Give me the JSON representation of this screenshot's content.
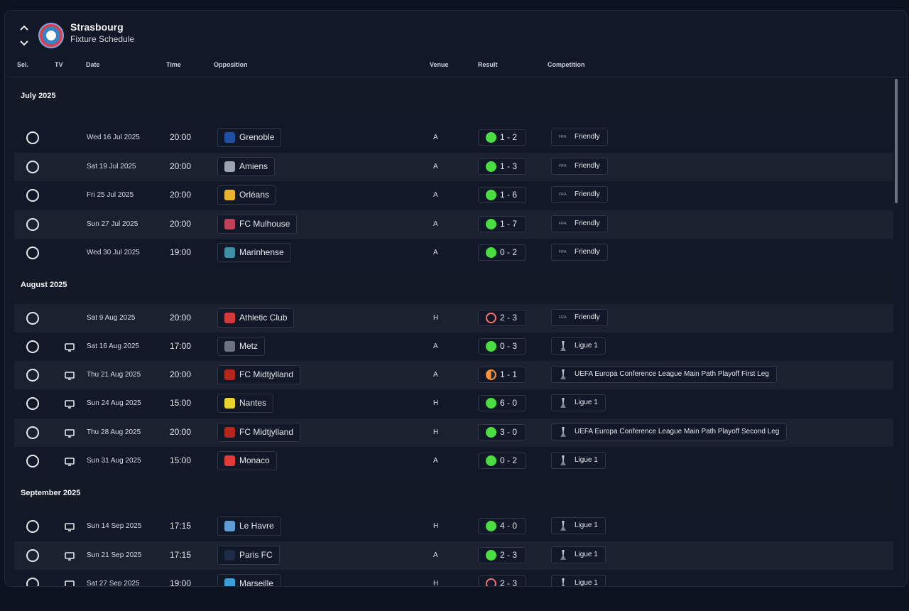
{
  "header": {
    "team": "Strasbourg",
    "subtitle": "Fixture Schedule"
  },
  "columns": {
    "sel": "Sel.",
    "tv": "TV",
    "date": "Date",
    "time": "Time",
    "opposition": "Opposition",
    "venue": "Venue",
    "result": "Result",
    "competition": "Competition"
  },
  "months": [
    "July 2025",
    "August 2025",
    "September 2025"
  ],
  "fixtures": [
    {
      "date": "Wed 16 Jul 2025",
      "time": "20:00",
      "opp": "Grenoble",
      "venue": "A",
      "result": "1 - 2",
      "outcome": "win",
      "comp": "Friendly",
      "tv": false,
      "badge": "#1e4fa3"
    },
    {
      "date": "Sat 19 Jul 2025",
      "time": "20:00",
      "opp": "Amiens",
      "venue": "A",
      "result": "1 - 3",
      "outcome": "win",
      "comp": "Friendly",
      "tv": false,
      "badge": "#9ca3af"
    },
    {
      "date": "Fri 25 Jul 2025",
      "time": "20:00",
      "opp": "Orléans",
      "venue": "A",
      "result": "1 - 6",
      "outcome": "win",
      "comp": "Friendly",
      "tv": false,
      "badge": "#e8b52c"
    },
    {
      "date": "Sun 27 Jul 2025",
      "time": "20:00",
      "opp": "FC Mulhouse",
      "venue": "A",
      "result": "1 - 7",
      "outcome": "win",
      "comp": "Friendly",
      "tv": false,
      "badge": "#c2415a"
    },
    {
      "date": "Wed 30 Jul 2025",
      "time": "19:00",
      "opp": "Marinhense",
      "venue": "A",
      "result": "0 - 2",
      "outcome": "win",
      "comp": "Friendly",
      "tv": false,
      "badge": "#3e8fa8"
    },
    {
      "date": "Sat 9 Aug 2025",
      "time": "20:00",
      "opp": "Athletic Club",
      "venue": "H",
      "result": "2 - 3",
      "outcome": "loss",
      "comp": "Friendly",
      "tv": false,
      "badge": "#d43a3a"
    },
    {
      "date": "Sat 16 Aug 2025",
      "time": "17:00",
      "opp": "Metz",
      "venue": "A",
      "result": "0 - 3",
      "outcome": "win",
      "comp": "Ligue 1",
      "tv": true,
      "badge": "#6b7280"
    },
    {
      "date": "Thu 21 Aug 2025",
      "time": "20:00",
      "opp": "FC Midtjylland",
      "venue": "A",
      "result": "1 - 1",
      "outcome": "draw",
      "comp": "UEFA Europa Conference League Main Path Playoff First Leg",
      "tv": true,
      "badge": "#b3261e"
    },
    {
      "date": "Sun 24 Aug 2025",
      "time": "15:00",
      "opp": "Nantes",
      "venue": "H",
      "result": "6 - 0",
      "outcome": "win",
      "comp": "Ligue 1",
      "tv": true,
      "badge": "#e8d22c"
    },
    {
      "date": "Thu 28 Aug 2025",
      "time": "20:00",
      "opp": "FC Midtjylland",
      "venue": "H",
      "result": "3 - 0",
      "outcome": "win",
      "comp": "UEFA Europa Conference League Main Path Playoff Second Leg",
      "tv": true,
      "badge": "#b3261e"
    },
    {
      "date": "Sun 31 Aug 2025",
      "time": "15:00",
      "opp": "Monaco",
      "venue": "A",
      "result": "0 - 2",
      "outcome": "win",
      "comp": "Ligue 1",
      "tv": true,
      "badge": "#e03a3a"
    },
    {
      "date": "Sun 14 Sep 2025",
      "time": "17:15",
      "opp": "Le Havre",
      "venue": "H",
      "result": "4 - 0",
      "outcome": "win",
      "comp": "Ligue 1",
      "tv": true,
      "badge": "#5f9ed6"
    },
    {
      "date": "Sun 21 Sep 2025",
      "time": "17:15",
      "opp": "Paris FC",
      "venue": "A",
      "result": "2 - 3",
      "outcome": "win",
      "comp": "Ligue 1",
      "tv": true,
      "badge": "#1f2a44"
    },
    {
      "date": "Sat 27 Sep 2025",
      "time": "19:00",
      "opp": "Marseille",
      "venue": "H",
      "result": "2 - 3",
      "outcome": "loss",
      "comp": "Ligue 1",
      "tv": true,
      "badge": "#3aa0dc"
    }
  ],
  "colors": {
    "win": "#4ade42",
    "loss": "#f87171",
    "draw": "#fb923c",
    "panel": "#111827",
    "row_alt": "#1a2230"
  }
}
